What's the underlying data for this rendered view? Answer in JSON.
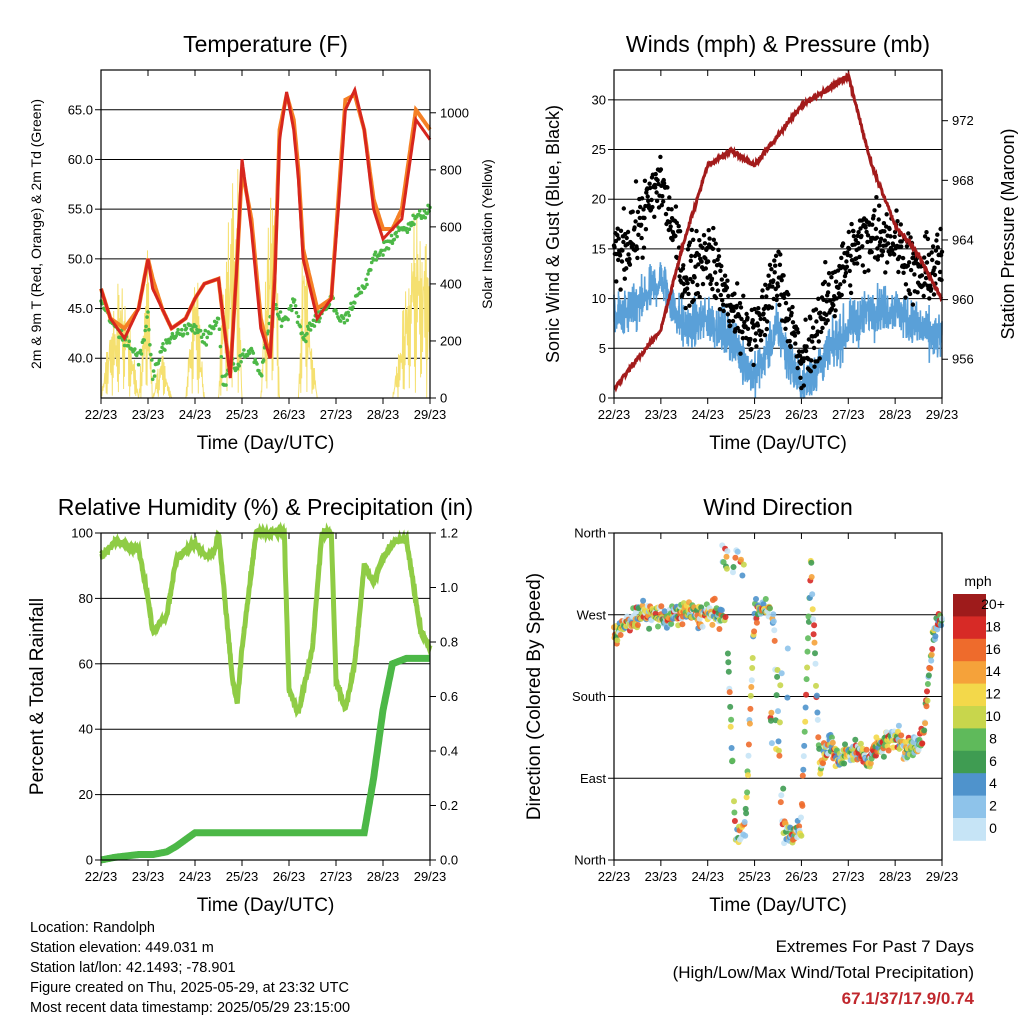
{
  "xticks": [
    "22/23",
    "23/23",
    "24/23",
    "25/23",
    "26/23",
    "27/23",
    "28/23",
    "29/23"
  ],
  "colors": {
    "red": "#d7261e",
    "orange": "#f58025",
    "green": "#4cb847",
    "yellow": "#f5e070",
    "blue": "#5aa0d8",
    "black": "#000000",
    "maroon": "#a31b1b",
    "rh": "#8fcc45",
    "precip": "#4cb847"
  },
  "info": {
    "location": "Location: Randolph",
    "elevation": "Station elevation: 449.031 m",
    "latlon": "Station lat/lon: 42.1493; -78.901",
    "created": "Figure created on Thu, 2025-05-29, at 23:32 UTC",
    "recent": "Most recent data timestamp: 2025/05/29 23:15:00"
  },
  "extremes": {
    "title": "Extremes For Past 7 Days",
    "subtitle": "(High/Low/Max Wind/Total Precipitation)",
    "values": "67.1/37/17.9/0.74"
  },
  "chart_data": [
    {
      "type": "line",
      "title": "Temperature (F)",
      "xlabel": "Time (Day/UTC)",
      "ylabel": "2m & 9m T (Red, Orange) & 2m Td (Green)",
      "y2label": "Solar Insolation (Yellow)",
      "ylim": [
        36,
        69
      ],
      "yticks": [
        "40.0",
        "45.0",
        "50.0",
        "55.0",
        "60.0",
        "65.0"
      ],
      "y2lim": [
        0,
        1150
      ],
      "y2ticks": [
        "0",
        "200",
        "400",
        "600",
        "800",
        "1000"
      ],
      "x": [
        0,
        0.2,
        0.5,
        0.8,
        1.0,
        1.1,
        1.3,
        1.5,
        1.8,
        2.0,
        2.2,
        2.5,
        2.6,
        2.75,
        2.9,
        3.0,
        3.2,
        3.4,
        3.6,
        3.7,
        3.8,
        3.95,
        4.1,
        4.2,
        4.3,
        4.6,
        4.9,
        5.05,
        5.2,
        5.4,
        5.6,
        5.8,
        6.0,
        6.2,
        6.4,
        6.7,
        7.0
      ],
      "series": [
        {
          "values": [
            47,
            44,
            42,
            45,
            50,
            47,
            45,
            43,
            44,
            46,
            47.5,
            48,
            44,
            38,
            50,
            60,
            53,
            43,
            40,
            48,
            62,
            66.8,
            63,
            58,
            50,
            44,
            46,
            55,
            65,
            67,
            63,
            55,
            52,
            53,
            54,
            64,
            62
          ]
        },
        {
          "values": [
            47,
            44,
            43,
            45,
            50,
            48,
            45,
            43,
            44,
            46,
            47.5,
            48,
            44,
            38.5,
            50,
            59,
            54,
            44,
            40,
            49,
            63,
            66.5,
            64,
            59,
            51,
            45,
            46,
            56,
            66,
            66.5,
            63,
            56,
            53,
            53,
            55,
            65,
            63
          ]
        },
        {
          "values": [
            46,
            44,
            42,
            40,
            44,
            38,
            41,
            42,
            43,
            43,
            42,
            44,
            37,
            40,
            39,
            40,
            41,
            38,
            44,
            45,
            44,
            44,
            46,
            44,
            42,
            44,
            46,
            44,
            44,
            46,
            47,
            50,
            51,
            52,
            53,
            54,
            55
          ]
        },
        {
          "values": [
            0,
            300,
            500,
            0,
            600,
            0,
            200,
            0,
            0,
            600,
            0,
            0,
            500,
            800,
            900,
            0,
            0,
            0,
            1000,
            1100,
            0,
            0,
            0,
            0,
            700,
            0,
            0,
            0,
            0,
            0,
            0,
            0,
            0,
            0,
            300,
            800,
            500
          ]
        }
      ]
    },
    {
      "type": "scatter",
      "title": "Winds (mph) & Pressure (mb)",
      "xlabel": "Time (Day/UTC)",
      "ylabel": "Sonic Wind & Gust (Blue, Black)",
      "y2label": "Station Pressure (Maroon)",
      "ylim": [
        0,
        33
      ],
      "yticks": [
        "0",
        "5",
        "10",
        "15",
        "20",
        "25",
        "30"
      ],
      "y2lim": [
        953.4,
        975.4
      ],
      "y2ticks": [
        "956",
        "960",
        "964",
        "968",
        "972"
      ],
      "x": [
        0,
        0.5,
        1.0,
        1.5,
        2.0,
        2.5,
        3.0,
        3.5,
        4.0,
        4.5,
        5.0,
        5.5,
        6.0,
        6.5,
        7.0
      ],
      "series": [
        {
          "values": [
            8,
            9,
            12,
            7,
            8,
            6,
            2,
            7,
            1,
            4,
            7,
            9,
            9,
            7,
            6
          ]
        },
        {
          "values": [
            14,
            17,
            22,
            12,
            15,
            9,
            6,
            13,
            3,
            9,
            14,
            17,
            16,
            12,
            14
          ]
        },
        {
          "values": [
            954,
            956,
            958,
            964,
            969,
            970,
            969,
            971,
            973,
            974,
            975,
            969,
            965,
            963,
            960
          ]
        }
      ]
    },
    {
      "type": "line",
      "title": "Relative Humidity (%) & Precipitation (in)",
      "xlabel": "Time (Day/UTC)",
      "ylabel": "Percent & Total Rainfall",
      "ylim": [
        0,
        100
      ],
      "yticks": [
        "0",
        "20",
        "40",
        "60",
        "80",
        "100"
      ],
      "y2lim": [
        0,
        1.2
      ],
      "y2ticks": [
        "0.0",
        "0.2",
        "0.4",
        "0.6",
        "0.8",
        "1.0",
        "1.2"
      ],
      "x": [
        0,
        0.3,
        0.8,
        1.0,
        1.1,
        1.4,
        1.6,
        2.0,
        2.2,
        2.4,
        2.5,
        2.7,
        2.8,
        2.9,
        3.0,
        3.3,
        3.5,
        3.7,
        3.9,
        4.0,
        4.2,
        4.5,
        4.7,
        4.9,
        5.0,
        5.2,
        5.4,
        5.6,
        5.8,
        6.0,
        6.2,
        6.5,
        6.8,
        7.0
      ],
      "series": [
        {
          "values": [
            93,
            97,
            95,
            80,
            70,
            75,
            92,
            97,
            93,
            94,
            100,
            70,
            55,
            48,
            65,
            100,
            100,
            100,
            100,
            52,
            45,
            65,
            100,
            100,
            55,
            46,
            60,
            90,
            85,
            92,
            97,
            98,
            70,
            65
          ]
        },
        {
          "values": [
            0,
            0.01,
            0.02,
            0.02,
            0.02,
            0.03,
            0.05,
            0.1,
            0.1,
            0.1,
            0.1,
            0.1,
            0.1,
            0.1,
            0.1,
            0.1,
            0.1,
            0.1,
            0.1,
            0.1,
            0.1,
            0.1,
            0.1,
            0.1,
            0.1,
            0.1,
            0.1,
            0.1,
            0.3,
            0.55,
            0.72,
            0.74,
            0.74,
            0.74
          ]
        }
      ]
    },
    {
      "type": "scatter",
      "title": "Wind Direction",
      "xlabel": "Time (Day/UTC)",
      "ylabel": "Direction (Colored By Speed)",
      "yticks": [
        "North",
        "East",
        "South",
        "West",
        "North"
      ],
      "ylim": [
        0,
        360
      ],
      "x": [
        0.1,
        0.3,
        0.6,
        0.9,
        1.2,
        1.5,
        1.8,
        2.1,
        2.4,
        2.6,
        2.8,
        3.0,
        3.2,
        3.4,
        3.6,
        3.8,
        4.0,
        4.2,
        4.4,
        4.6,
        4.8,
        5.0,
        5.2,
        5.4,
        5.6,
        5.8,
        6.0,
        6.2,
        6.4,
        6.6,
        6.8,
        7.0
      ],
      "values": [
        250,
        262,
        272,
        270,
        265,
        275,
        268,
        272,
        265,
        20,
        35,
        270,
        280,
        270,
        30,
        25,
        40,
        330,
        100,
        130,
        110,
        120,
        120,
        110,
        125,
        130,
        140,
        120,
        125,
        135,
        245,
        265
      ],
      "colorbar": {
        "title": "mph",
        "labels": [
          "0",
          "2",
          "4",
          "6",
          "8",
          "10",
          "12",
          "14",
          "16",
          "18",
          "20+"
        ],
        "colors": [
          "#c6e4f6",
          "#8ec3ea",
          "#4f93cc",
          "#3f9c52",
          "#5fba5b",
          "#c8d64c",
          "#f3d84a",
          "#f5a23a",
          "#ee6b2c",
          "#d72a26",
          "#9e1b1b"
        ]
      }
    }
  ]
}
